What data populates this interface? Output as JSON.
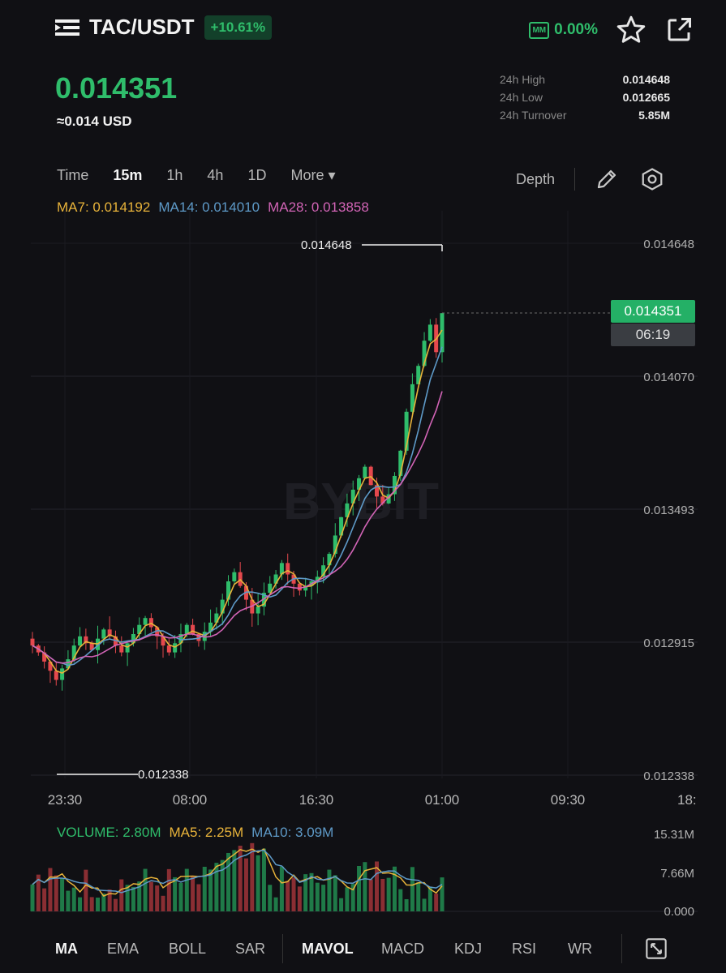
{
  "header": {
    "pair": "TAC/USDT",
    "change_badge": "+10.61%",
    "mm_label": "MM",
    "mm_value": "0.00%",
    "icons": [
      "menu-icon",
      "star-icon",
      "share-icon"
    ]
  },
  "price": {
    "last": "0.014351",
    "usd": "≈0.014 USD"
  },
  "stats": [
    {
      "label": "24h High",
      "value": "0.014648"
    },
    {
      "label": "24h Low",
      "value": "0.012665"
    },
    {
      "label": "24h Turnover",
      "value": "5.85M"
    }
  ],
  "timeframes": [
    "Time",
    "15m",
    "1h",
    "4h",
    "1D",
    "More ▾"
  ],
  "active_timeframe": "15m",
  "depth_label": "Depth",
  "ma_legend": {
    "ma7": "MA7: 0.014192",
    "ma14": "MA14: 0.014010",
    "ma28": "MA28: 0.013858"
  },
  "chart_data": {
    "type": "candlestick",
    "y_ticks": [
      "0.014648",
      "0.014070",
      "0.013493",
      "0.012915",
      "0.012338"
    ],
    "x_ticks": [
      "23:30",
      "08:00",
      "16:30",
      "01:00",
      "09:30",
      "18:"
    ],
    "high_marker": "0.014648",
    "low_marker": "0.012338",
    "last_price_tag": "0.014351",
    "countdown": "06:19",
    "watermark": "BYBIT",
    "ylim": [
      0.012338,
      0.014648
    ],
    "close_series": [
      0.0129,
      0.01287,
      0.01283,
      0.01279,
      0.01275,
      0.0128,
      0.01284,
      0.0129,
      0.01294,
      0.01291,
      0.01288,
      0.01293,
      0.01297,
      0.01294,
      0.0129,
      0.01287,
      0.01291,
      0.01295,
      0.01299,
      0.01302,
      0.01298,
      0.01294,
      0.0129,
      0.01287,
      0.01291,
      0.01295,
      0.01299,
      0.01295,
      0.01292,
      0.01296,
      0.013,
      0.01304,
      0.0131,
      0.01318,
      0.01322,
      0.01316,
      0.0131,
      0.01304,
      0.01307,
      0.01313,
      0.01317,
      0.01321,
      0.01326,
      0.01321,
      0.01317,
      0.01314,
      0.01316,
      0.01318,
      0.0132,
      0.01325,
      0.0133,
      0.01338,
      0.01346,
      0.01352,
      0.01358,
      0.01363,
      0.01368,
      0.0136,
      0.01355,
      0.01352,
      0.01356,
      0.01364,
      0.01375,
      0.01392,
      0.01404,
      0.01412,
      0.01423,
      0.0143,
      0.01418,
      0.01435
    ],
    "volume": {
      "legend": "VOLUME: 2.80M",
      "ma5": "MA5: 2.25M",
      "ma10": "MA10: 3.09M",
      "y_ticks": [
        "15.31M",
        "7.66M",
        "0.000"
      ]
    }
  },
  "indicators": [
    "MA",
    "EMA",
    "BOLL",
    "SAR",
    "MAVOL",
    "MACD",
    "KDJ",
    "RSI",
    "WR"
  ],
  "active_indicators": [
    "MA",
    "MAVOL"
  ],
  "colors": {
    "up": "#2fbd6b",
    "down": "#e5484d",
    "ma7": "#e8b33a",
    "ma14": "#5e9ac8",
    "ma28": "#d264b6",
    "background": "#101014"
  }
}
